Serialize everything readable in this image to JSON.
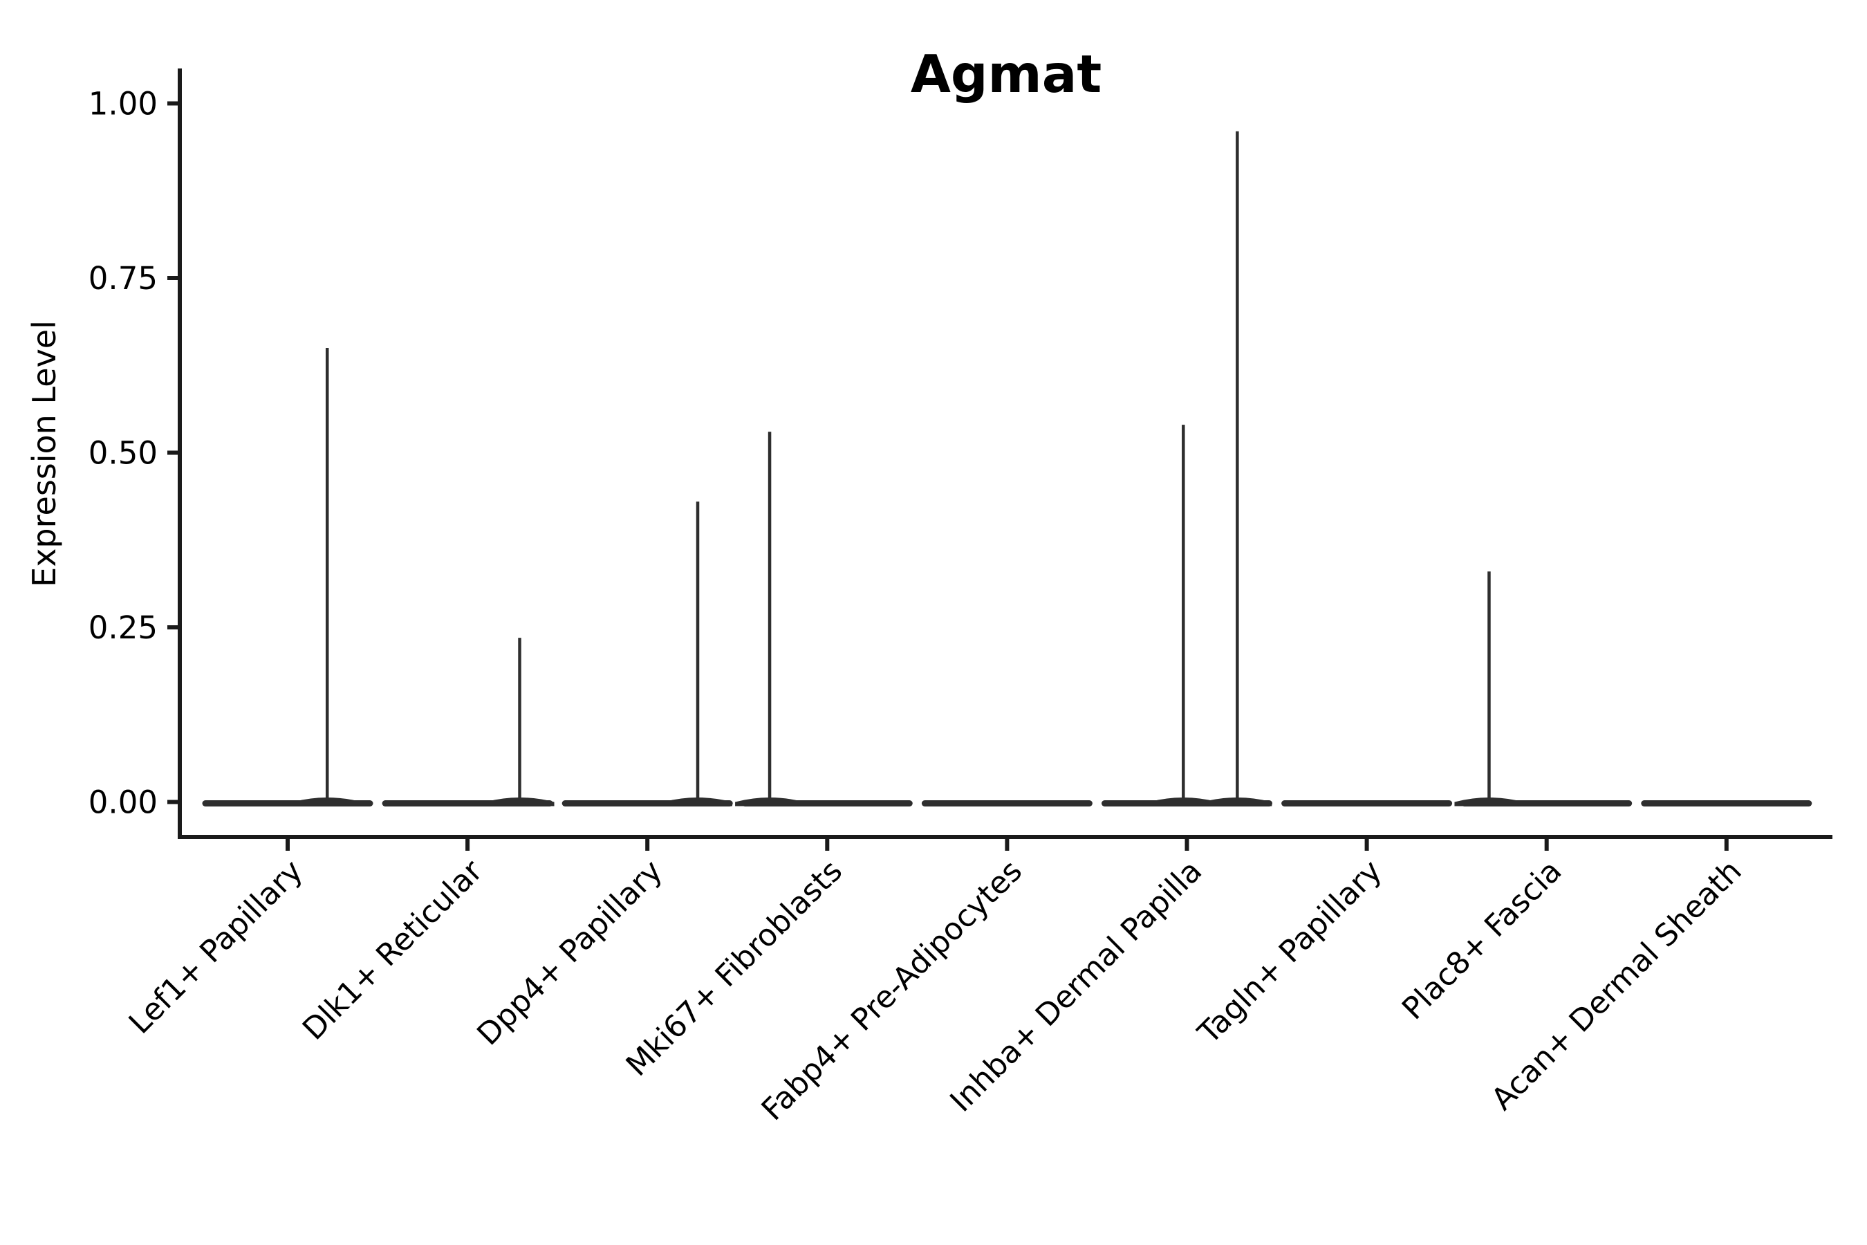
{
  "figure": {
    "title": "Agmat",
    "background_color": "#ffffff"
  },
  "chart_data": {
    "type": "violin",
    "title": "Agmat",
    "xlabel": "",
    "ylabel": "Expression Level",
    "ylim": [
      -0.05,
      1.05
    ],
    "grid": false,
    "legend": null,
    "yticks": [
      {
        "value": 0.0,
        "label": "0.00"
      },
      {
        "value": 0.25,
        "label": "0.25"
      },
      {
        "value": 0.5,
        "label": "0.50"
      },
      {
        "value": 0.75,
        "label": "0.75"
      },
      {
        "value": 1.0,
        "label": "1.00"
      }
    ],
    "categories": [
      "Lef1+ Papillary",
      "Dlk1+ Reticular",
      "Dpp4+ Papillary",
      "Mki67+ Fibroblasts",
      "Fabp4+ Pre-Adipocytes",
      "Inhba+ Dermal Papilla",
      "Tagln+ Papillary",
      "Plac8+ Fascia",
      "Acan+ Dermal Sheath"
    ],
    "series": [
      {
        "name": "Lef1+ Papillary",
        "baseline_value": 0,
        "max_expression": 0.65,
        "spikes": [
          {
            "value": 0.65,
            "x_offset_frac": 0.22
          }
        ]
      },
      {
        "name": "Dlk1+ Reticular",
        "baseline_value": 0,
        "max_expression": 0.24,
        "spikes": [
          {
            "value": 0.235,
            "x_offset_frac": 0.29
          }
        ]
      },
      {
        "name": "Dpp4+ Papillary",
        "baseline_value": 0,
        "max_expression": 0.43,
        "spikes": [
          {
            "value": 0.43,
            "x_offset_frac": 0.28
          }
        ]
      },
      {
        "name": "Mki67+ Fibroblasts",
        "baseline_value": 0,
        "max_expression": 0.53,
        "spikes": [
          {
            "value": 0.53,
            "x_offset_frac": -0.32
          }
        ]
      },
      {
        "name": "Fabp4+ Pre-Adipocytes",
        "baseline_value": 0,
        "max_expression": 0.0,
        "spikes": []
      },
      {
        "name": "Inhba+ Dermal Papilla",
        "baseline_value": 0,
        "max_expression": 0.96,
        "spikes": [
          {
            "value": 0.54,
            "x_offset_frac": -0.02
          },
          {
            "value": 0.96,
            "x_offset_frac": 0.28
          }
        ]
      },
      {
        "name": "Tagln+ Papillary",
        "baseline_value": 0,
        "max_expression": 0.0,
        "spikes": []
      },
      {
        "name": "Plac8+ Fascia",
        "baseline_value": 0,
        "max_expression": 0.33,
        "spikes": [
          {
            "value": 0.33,
            "x_offset_frac": -0.32
          }
        ]
      },
      {
        "name": "Acan+ Dermal Sheath",
        "baseline_value": 0,
        "max_expression": 0.0,
        "spikes": []
      }
    ]
  },
  "style": {
    "spine_color": "#1a1a1a",
    "violin_color": "#2e2e2e",
    "text_color": "#000000"
  }
}
